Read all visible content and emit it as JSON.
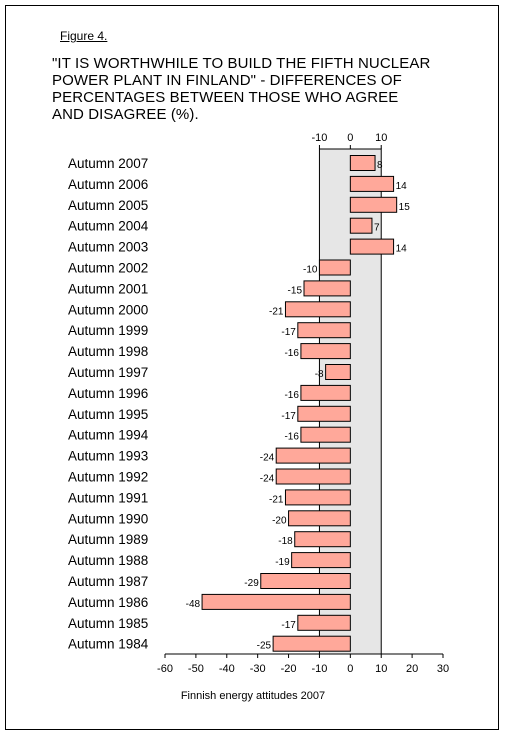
{
  "figure_label": "Figure 4.",
  "title": "\"IT IS WORTHWHILE TO BUILD THE FIFTH NUCLEAR\n POWER PLANT IN FINLAND\" - DIFFERENCES OF\n PERCENTAGES BETWEEN THOSE WHO AGREE\n AND DISAGREE (%).",
  "source": "Finnish energy attitudes 2007",
  "colors": {
    "bar_fill": "#ffa89a",
    "bar_stroke": "#000000",
    "band_fill": "#e6e6e6"
  },
  "chart_data": {
    "type": "bar",
    "orientation": "horizontal",
    "categories": [
      "Autumn 2007",
      "Autumn 2006",
      "Autumn 2005",
      "Autumn 2004",
      "Autumn 2003",
      "Autumn 2002",
      "Autumn 2001",
      "Autumn 2000",
      "Autumn 1999",
      "Autumn 1998",
      "Autumn 1997",
      "Autumn 1996",
      "Autumn 1995",
      "Autumn 1994",
      "Autumn 1993",
      "Autumn 1992",
      "Autumn 1991",
      "Autumn 1990",
      "Autumn 1989",
      "Autumn 1988",
      "Autumn 1987",
      "Autumn 1986",
      "Autumn 1985",
      "Autumn 1984"
    ],
    "values": [
      8,
      14,
      15,
      7,
      14,
      -10,
      -15,
      -21,
      -17,
      -16,
      -8,
      -16,
      -17,
      -16,
      -24,
      -24,
      -21,
      -20,
      -18,
      -19,
      -29,
      -48,
      -17,
      -25
    ],
    "xlim": [
      -60,
      30
    ],
    "xticks": [
      -60,
      -50,
      -40,
      -30,
      -20,
      -10,
      0,
      10,
      20,
      30
    ],
    "top_axis_ticks": [
      -10,
      0,
      10
    ],
    "shaded_band": [
      -10,
      10
    ],
    "grid": false,
    "legend": "none"
  }
}
